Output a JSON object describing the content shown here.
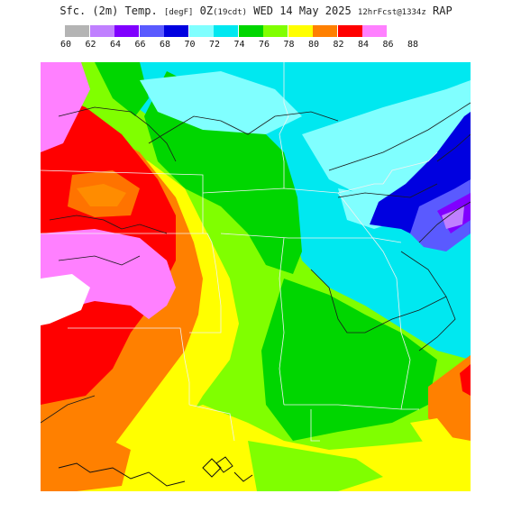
{
  "title": {
    "product": "Sfc. (2m) Temp.",
    "unit": "[degF]",
    "valid": "0Z",
    "local": "(19cdt)",
    "date": "WED 14 May 2025",
    "forecast": "12hrFcst@1334z",
    "model": "RAP"
  },
  "legend": [
    {
      "value": "60",
      "color": "#b4b4b4"
    },
    {
      "value": "62",
      "color": "#c080ff"
    },
    {
      "value": "64",
      "color": "#8000ff"
    },
    {
      "value": "66",
      "color": "#5a5aff"
    },
    {
      "value": "68",
      "color": "#0000e0"
    },
    {
      "value": "70",
      "color": "#80ffff"
    },
    {
      "value": "72",
      "color": "#00e8f0"
    },
    {
      "value": "74",
      "color": "#00d600"
    },
    {
      "value": "76",
      "color": "#80ff00"
    },
    {
      "value": "78",
      "color": "#ffff00"
    },
    {
      "value": "80",
      "color": "#ff8000"
    },
    {
      "value": "82",
      "color": "#ff0000"
    },
    {
      "value": "84",
      "color": "#ff80ff"
    },
    {
      "value": "86",
      "color": ""
    },
    {
      "value": "88",
      "color": ""
    }
  ]
}
